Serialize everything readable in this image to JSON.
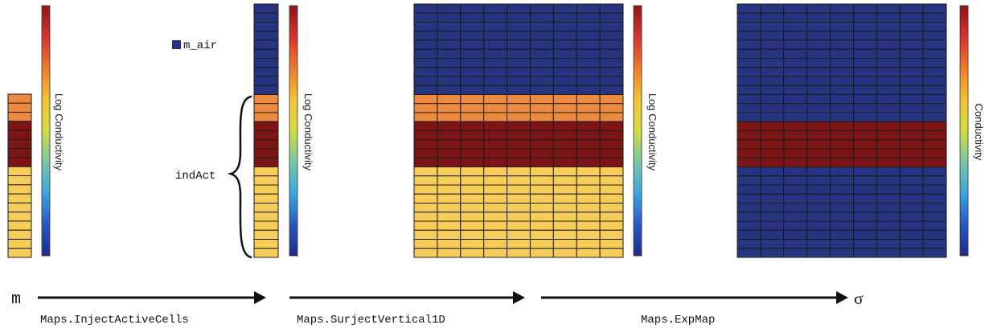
{
  "colors": {
    "blue": "#27347f",
    "orange": "#ee8a3f",
    "darkred": "#7d1517",
    "yellow": "#f7cd5a",
    "grid_line": "#1b1b1b",
    "colorbar": [
      "#1f2a8a",
      "#2a56c6",
      "#37a7e0",
      "#78c7a4",
      "#d3dd3c",
      "#f4c431",
      "#ee7a2c",
      "#d8322d",
      "#8e1616"
    ]
  },
  "colorbar_labels": {
    "log": "Log Conductivity",
    "plain": "Conductivity"
  },
  "annotations": {
    "m_air": "m_air",
    "indAct": "indAct"
  },
  "symbols": {
    "m": "m",
    "sigma": "σ"
  },
  "maps": {
    "inject": "Maps.InjectActiveCells",
    "surject": "Maps.SurjectVertical1D",
    "exp": "Maps.ExpMap"
  },
  "model": {
    "active_layers": [
      {
        "color": "orange",
        "count": 3
      },
      {
        "color": "darkred",
        "count": 5
      },
      {
        "color": "yellow",
        "count": 10
      }
    ],
    "air_cells": 10,
    "columns": 9
  }
}
